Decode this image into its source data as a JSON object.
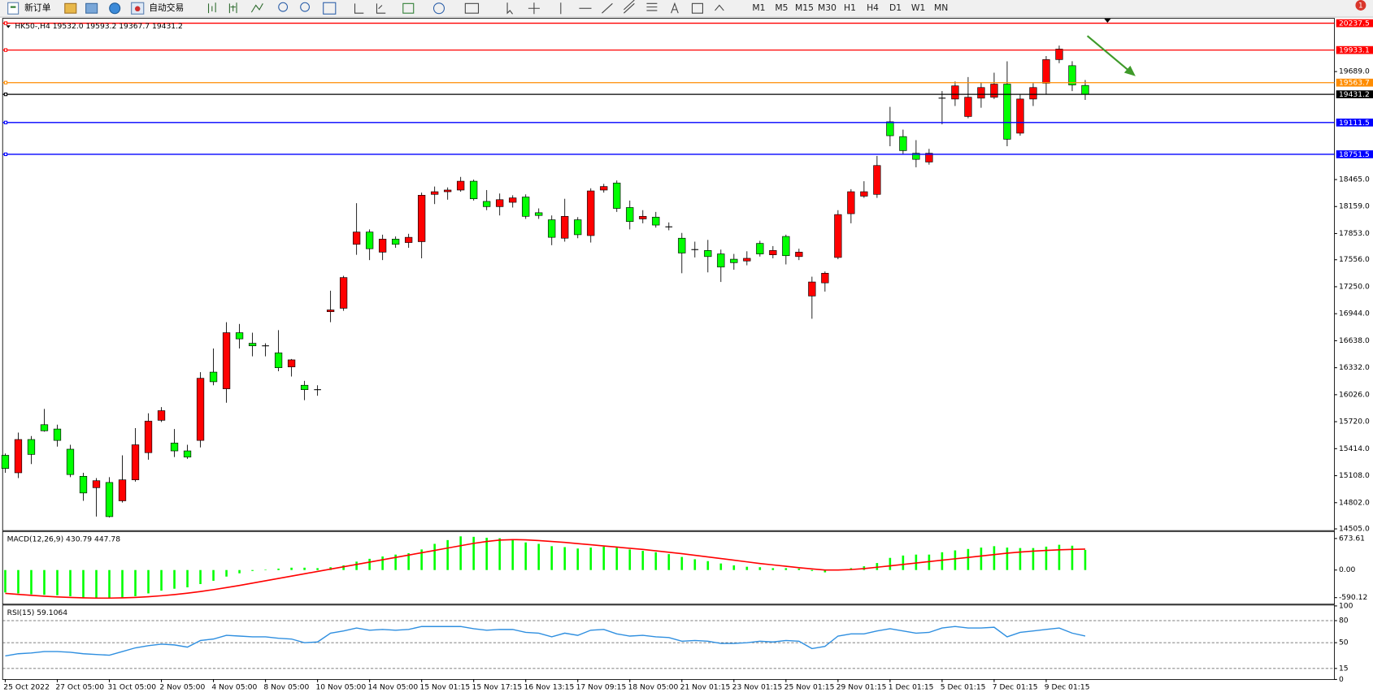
{
  "toolbar": {
    "new_order": "新订单",
    "auto_trading": "自动交易",
    "timeframes": [
      "M1",
      "M5",
      "M15",
      "M30",
      "H1",
      "H4",
      "D1",
      "W1",
      "MN"
    ],
    "alerts": "1"
  },
  "chart_data": [
    {
      "type": "candlestick",
      "title": "HK50-,H4 19532.0 19593.2 19367.7 19431.2",
      "up_color": "#ff0000",
      "down_color": "#00ff00",
      "categories": [
        "25 Oct 2022",
        null,
        null,
        null,
        "27 Oct 05:00",
        null,
        null,
        null,
        "31 Oct 05:00",
        null,
        null,
        null,
        "2 Nov 05:00",
        null,
        null,
        null,
        "4 Nov 05:00",
        null,
        null,
        null,
        "8 Nov 05:00",
        null,
        null,
        null,
        "10 Nov 05:00",
        null,
        null,
        null,
        "14 Nov 05:00",
        null,
        null,
        null,
        "15 Nov 01:15",
        null,
        null,
        null,
        "15 Nov 17:15",
        null,
        null,
        null,
        "16 Nov 13:15",
        null,
        null,
        null,
        "17 Nov 09:15",
        null,
        null,
        null,
        "18 Nov 05:00",
        null,
        null,
        null,
        "21 Nov 01:15",
        null,
        null,
        null,
        "23 Nov 01:15",
        null,
        null,
        null,
        "25 Nov 01:15",
        null,
        null,
        null,
        "29 Nov 01:15",
        null,
        null,
        null,
        "1 Dec 01:15",
        null,
        null,
        null,
        "5 Dec 01:15",
        null,
        null,
        null,
        "7 Dec 01:15",
        null,
        null,
        null,
        "9 Dec 01:15",
        null,
        null,
        null
      ],
      "open": [
        15339,
        15141,
        15518,
        15686,
        15637,
        15408,
        15101,
        14972,
        15031,
        14823,
        15061,
        15369,
        15736,
        15478,
        15389,
        15508,
        16282,
        16093,
        16729,
        16609,
        16580,
        16500,
        16341,
        16133,
        16083,
        16967,
        17006,
        17731,
        17870,
        17642,
        17790,
        17751,
        17761,
        18297,
        18327,
        18346,
        18446,
        18217,
        18158,
        18207,
        18267,
        18089,
        18009,
        17800,
        18009,
        17830,
        18346,
        18426,
        18148,
        18019,
        18039,
        17929,
        17800,
        17671,
        17661,
        17622,
        17562,
        17542,
        17741,
        17612,
        17820,
        17592,
        17145,
        17294,
        17582,
        18078,
        18277,
        18297,
        19120,
        18952,
        18763,
        18664,
        19388,
        19378,
        19180,
        19388,
        19398,
        19547,
        18991,
        19378,
        19557,
        19825,
        19756,
        19532
      ],
      "high": [
        15359,
        15597,
        15557,
        15865,
        15686,
        15458,
        15141,
        15081,
        15091,
        15339,
        15647,
        15815,
        15885,
        15637,
        15458,
        16282,
        16550,
        16848,
        16828,
        16729,
        16609,
        16758,
        16431,
        16183,
        16133,
        17205,
        17374,
        18197,
        17900,
        17840,
        17820,
        17850,
        18317,
        18386,
        18376,
        18495,
        18465,
        18346,
        18307,
        18287,
        18297,
        18138,
        18058,
        18247,
        18039,
        18366,
        18416,
        18455,
        18227,
        18118,
        18098,
        17979,
        17860,
        17761,
        17781,
        17671,
        17622,
        17652,
        17771,
        17711,
        17840,
        17681,
        17364,
        17423,
        18118,
        18356,
        18446,
        18733,
        19289,
        19031,
        18912,
        18813,
        19468,
        19577,
        19627,
        19567,
        19676,
        19805,
        19428,
        19557,
        19865,
        19984,
        19806,
        19593.2
      ],
      "low": [
        15141,
        15081,
        15240,
        15607,
        15438,
        15091,
        14823,
        14644,
        14634,
        14803,
        15041,
        15289,
        15716,
        15319,
        15299,
        15428,
        16133,
        15935,
        16550,
        16461,
        16461,
        16292,
        16232,
        15964,
        16014,
        16848,
        16977,
        17612,
        17552,
        17552,
        17691,
        17691,
        17572,
        18187,
        18237,
        18327,
        18227,
        18118,
        18058,
        18148,
        18019,
        18019,
        17721,
        17761,
        17800,
        17751,
        18317,
        18098,
        17900,
        17969,
        17920,
        17890,
        17403,
        17582,
        17413,
        17304,
        17443,
        17493,
        17592,
        17572,
        17503,
        17552,
        16887,
        17195,
        17562,
        17969,
        18257,
        18257,
        18843,
        18753,
        18604,
        18634,
        19091,
        19299,
        19160,
        19279,
        19378,
        18843,
        18962,
        19299,
        19428,
        19785,
        19468,
        19367.7
      ],
      "close": [
        15190,
        15518,
        15349,
        15617,
        15508,
        15121,
        14912,
        15051,
        14644,
        15061,
        15458,
        15726,
        15845,
        15389,
        15319,
        16212,
        16173,
        16729,
        16659,
        16580,
        16580,
        16332,
        16421,
        16083,
        16083,
        16987,
        17354,
        17870,
        17681,
        17790,
        17731,
        17810,
        18287,
        18327,
        18346,
        18446,
        18247,
        18158,
        18237,
        18257,
        18048,
        18058,
        17810,
        18048,
        17840,
        18336,
        18386,
        18138,
        17989,
        18048,
        17949,
        17929,
        17632,
        17671,
        17592,
        17473,
        17523,
        17572,
        17622,
        17661,
        17602,
        17642,
        17304,
        17403,
        18068,
        18327,
        18327,
        18624,
        18962,
        18793,
        18694,
        18763,
        19388,
        19527,
        19398,
        19508,
        19547,
        18922,
        19378,
        19508,
        19825,
        19944,
        19537,
        19431.2
      ],
      "ylim": [
        14495,
        20282
      ],
      "yticks": [
        {
          "value": 14505,
          "label": "14505.0"
        },
        {
          "value": 14802,
          "label": "14802.0"
        },
        {
          "value": 15108,
          "label": "15108.0"
        },
        {
          "value": 15414,
          "label": "15414.0"
        },
        {
          "value": 15720,
          "label": "15720.0"
        },
        {
          "value": 16026,
          "label": "16026.0"
        },
        {
          "value": 16332,
          "label": "16332.0"
        },
        {
          "value": 16638,
          "label": "16638.0"
        },
        {
          "value": 16944,
          "label": "16944.0"
        },
        {
          "value": 17250,
          "label": "17250.0"
        },
        {
          "value": 17556,
          "label": "17556.0"
        },
        {
          "value": 17853,
          "label": "17853.0"
        },
        {
          "value": 18159,
          "label": "18159.0"
        },
        {
          "value": 18465,
          "label": "18465.0"
        },
        {
          "value": 19689,
          "label": "19689.0"
        }
      ],
      "hlines": [
        {
          "value": 20237.5,
          "color": "#ff0000"
        },
        {
          "value": 19933.1,
          "color": "#ff0000"
        },
        {
          "value": 19563.7,
          "color": "#ff8c00"
        },
        {
          "value": 19431.2,
          "color": "#000000"
        },
        {
          "value": 19111.5,
          "color": "#0000ff"
        },
        {
          "value": 18751.5,
          "color": "#0000ff"
        }
      ]
    },
    {
      "type": "bar",
      "title": "MACD(12,26,9) 430.79 447.78",
      "color": "#00ff00",
      "line_color": "#ff0000",
      "values": [
        -480,
        -500,
        -520,
        -530,
        -540,
        -560,
        -590,
        -600,
        -610,
        -600,
        -560,
        -500,
        -440,
        -400,
        -370,
        -300,
        -230,
        -140,
        -70,
        -20,
        10,
        30,
        50,
        50,
        40,
        60,
        100,
        180,
        240,
        290,
        330,
        360,
        440,
        560,
        640,
        720,
        710,
        690,
        680,
        660,
        590,
        560,
        510,
        490,
        460,
        480,
        500,
        480,
        440,
        410,
        380,
        340,
        280,
        230,
        190,
        140,
        100,
        70,
        60,
        40,
        40,
        30,
        -20,
        -50,
        -10,
        40,
        80,
        150,
        260,
        310,
        330,
        330,
        380,
        420,
        450,
        480,
        510,
        480,
        470,
        470,
        500,
        540,
        520,
        430.79
      ],
      "line_values": [
        -500,
        -520,
        -540,
        -560,
        -575,
        -585,
        -595,
        -600,
        -600,
        -595,
        -585,
        -570,
        -550,
        -525,
        -495,
        -460,
        -420,
        -375,
        -330,
        -280,
        -230,
        -180,
        -130,
        -80,
        -30,
        20,
        70,
        120,
        170,
        220,
        270,
        320,
        370,
        420,
        470,
        520,
        570,
        610,
        640,
        650,
        645,
        630,
        610,
        590,
        565,
        540,
        515,
        490,
        465,
        440,
        410,
        380,
        350,
        315,
        280,
        245,
        210,
        175,
        140,
        110,
        80,
        50,
        25,
        0,
        0,
        10,
        30,
        60,
        90,
        120,
        150,
        180,
        210,
        240,
        270,
        300,
        330,
        360,
        385,
        405,
        420,
        432,
        440,
        447.78
      ],
      "ylim": [
        -730,
        805
      ],
      "yticks": [
        673.61,
        {
          "value": 0,
          "label": "0.00"
        },
        -590.12
      ]
    },
    {
      "type": "line",
      "title": "RSI(15) 59.1064",
      "color": "#2f8fe0",
      "values": [
        32,
        35,
        36,
        38,
        38,
        37,
        35,
        34,
        33,
        38,
        43,
        46,
        48,
        47,
        44,
        53,
        55,
        60,
        59,
        58,
        58,
        56,
        55,
        50,
        51,
        63,
        66,
        70,
        67,
        68,
        67,
        68,
        72,
        72,
        72,
        72,
        69,
        67,
        68,
        68,
        64,
        63,
        58,
        63,
        60,
        67,
        68,
        62,
        59,
        60,
        58,
        57,
        52,
        53,
        52,
        49,
        49,
        50,
        52,
        51,
        53,
        52,
        42,
        45,
        59,
        62,
        62,
        66,
        69,
        66,
        63,
        64,
        70,
        72,
        70,
        70,
        71,
        58,
        64,
        66,
        68,
        70,
        63,
        59.1064
      ],
      "ylim": [
        0,
        100
      ],
      "yticks": [
        100,
        80,
        50,
        15,
        0
      ]
    }
  ]
}
